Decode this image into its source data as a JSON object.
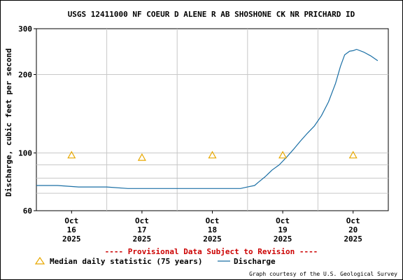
{
  "chart_data": {
    "type": "line",
    "title": "USGS 12411000 NF COEUR D ALENE R AB SHOSHONE CK NR PRICHARD ID",
    "ylabel": "Discharge, cubic feet per second",
    "xlabel": "",
    "yscale": "log",
    "ylim": [
      60,
      300
    ],
    "y_tick_labels": [
      "300",
      "200",
      "100",
      "60"
    ],
    "x_ticks": [
      {
        "lines": [
          "Oct",
          "16",
          "2025"
        ],
        "day": 0.5
      },
      {
        "lines": [
          "Oct",
          "17",
          "2025"
        ],
        "day": 1.5
      },
      {
        "lines": [
          "Oct",
          "18",
          "2025"
        ],
        "day": 2.5
      },
      {
        "lines": [
          "Oct",
          "19",
          "2025"
        ],
        "day": 3.5
      },
      {
        "lines": [
          "Oct",
          "20",
          "2025"
        ],
        "day": 4.5
      }
    ],
    "grid": true,
    "series": [
      {
        "name": "Discharge",
        "color": "#1a6fa5",
        "points": [
          [
            0.0,
            75
          ],
          [
            0.3,
            75
          ],
          [
            0.6,
            74
          ],
          [
            1.0,
            74
          ],
          [
            1.3,
            73
          ],
          [
            1.6,
            73
          ],
          [
            2.0,
            73
          ],
          [
            2.3,
            73
          ],
          [
            2.6,
            73
          ],
          [
            2.9,
            73
          ],
          [
            3.0,
            74
          ],
          [
            3.1,
            75
          ],
          [
            3.15,
            77
          ],
          [
            3.25,
            81
          ],
          [
            3.35,
            86
          ],
          [
            3.45,
            90
          ],
          [
            3.55,
            96
          ],
          [
            3.65,
            103
          ],
          [
            3.75,
            111
          ],
          [
            3.85,
            119
          ],
          [
            3.95,
            127
          ],
          [
            4.05,
            139
          ],
          [
            4.15,
            157
          ],
          [
            4.25,
            185
          ],
          [
            4.32,
            215
          ],
          [
            4.38,
            238
          ],
          [
            4.45,
            246
          ],
          [
            4.5,
            247
          ],
          [
            4.55,
            250
          ],
          [
            4.65,
            244
          ],
          [
            4.75,
            236
          ],
          [
            4.85,
            226
          ]
        ]
      }
    ],
    "median_markers": {
      "name": "Median daily statistic (75 years)",
      "color": "#e8a800",
      "points": [
        [
          0.5,
          98
        ],
        [
          1.5,
          96
        ],
        [
          2.5,
          98
        ],
        [
          3.5,
          98
        ],
        [
          4.5,
          98
        ]
      ]
    },
    "legend_position": "bottom-left",
    "provisional_notice": "---- Provisional Data Subject to Revision ----",
    "credit": "Graph courtesy of the U.S. Geological Survey"
  }
}
